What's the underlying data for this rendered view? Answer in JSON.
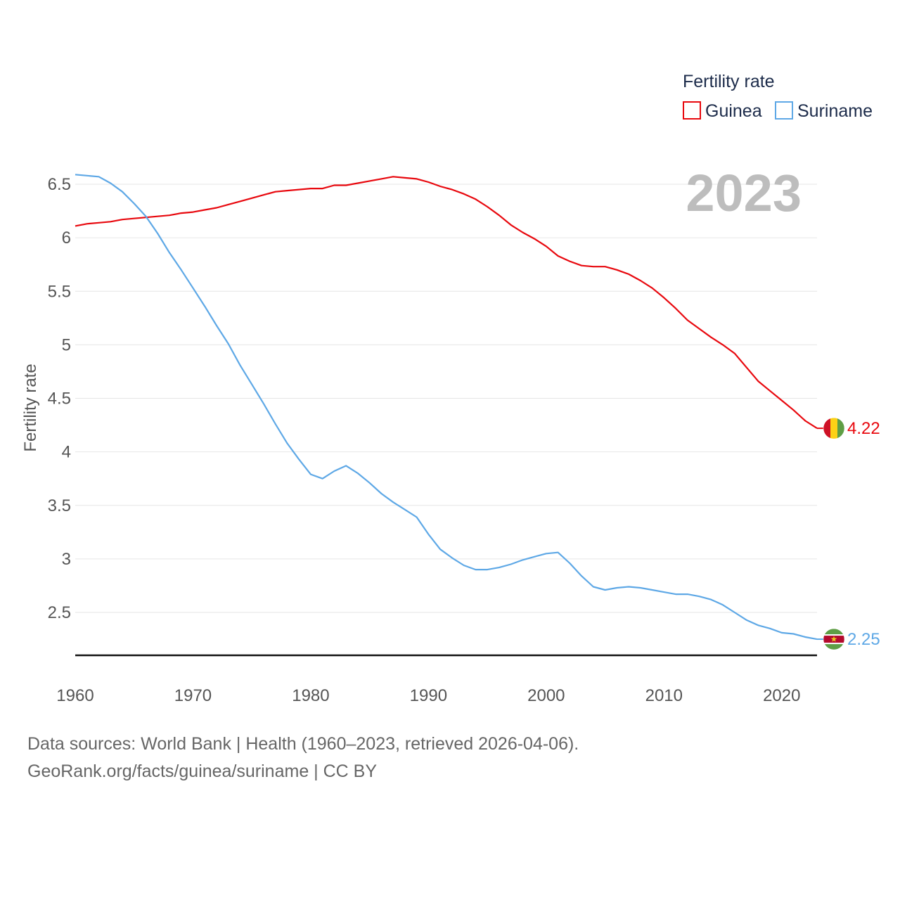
{
  "chart_data": {
    "type": "line",
    "title": "Fertility rate",
    "ylabel": "Fertility rate",
    "xlabel": "",
    "current_year_label": "2023",
    "xlim": [
      1960,
      2023
    ],
    "ylim": [
      2.1,
      6.6
    ],
    "y_ticks": [
      2.5,
      3,
      3.5,
      4,
      4.5,
      5,
      5.5,
      6,
      6.5
    ],
    "y_tick_labels": [
      "2.5",
      "3",
      "3.5",
      "4",
      "4.5",
      "5",
      "5.5",
      "6",
      "6.5"
    ],
    "x_ticks": [
      1960,
      1970,
      1980,
      1990,
      2000,
      2010,
      2020
    ],
    "x_tick_labels": [
      "1960",
      "1970",
      "1980",
      "1990",
      "2000",
      "2010",
      "2020"
    ],
    "grid": true,
    "legend_position": "top-right",
    "x": [
      1960,
      1961,
      1962,
      1963,
      1964,
      1965,
      1966,
      1967,
      1968,
      1969,
      1970,
      1971,
      1972,
      1973,
      1974,
      1975,
      1976,
      1977,
      1978,
      1979,
      1980,
      1981,
      1982,
      1983,
      1984,
      1985,
      1986,
      1987,
      1988,
      1989,
      1990,
      1991,
      1992,
      1993,
      1994,
      1995,
      1996,
      1997,
      1998,
      1999,
      2000,
      2001,
      2002,
      2003,
      2004,
      2005,
      2006,
      2007,
      2008,
      2009,
      2010,
      2011,
      2012,
      2013,
      2014,
      2015,
      2016,
      2017,
      2018,
      2019,
      2020,
      2021,
      2022,
      2023
    ],
    "series": [
      {
        "name": "Guinea",
        "color": "#e8080e",
        "end_label": "4.22",
        "values": [
          6.11,
          6.13,
          6.14,
          6.15,
          6.17,
          6.18,
          6.19,
          6.2,
          6.21,
          6.23,
          6.24,
          6.26,
          6.28,
          6.31,
          6.34,
          6.37,
          6.4,
          6.43,
          6.44,
          6.45,
          6.46,
          6.46,
          6.49,
          6.49,
          6.51,
          6.53,
          6.55,
          6.57,
          6.56,
          6.55,
          6.52,
          6.48,
          6.45,
          6.41,
          6.36,
          6.29,
          6.21,
          6.12,
          6.05,
          5.99,
          5.92,
          5.83,
          5.78,
          5.74,
          5.73,
          5.73,
          5.7,
          5.66,
          5.6,
          5.53,
          5.44,
          5.34,
          5.23,
          5.15,
          5.07,
          5.0,
          4.92,
          4.79,
          4.66,
          4.57,
          4.48,
          4.39,
          4.29,
          4.22
        ]
      },
      {
        "name": "Suriname",
        "color": "#5ea8e6",
        "end_label": "2.25",
        "values": [
          6.59,
          6.58,
          6.57,
          6.51,
          6.43,
          6.32,
          6.2,
          6.04,
          5.86,
          5.7,
          5.53,
          5.36,
          5.18,
          5.01,
          4.81,
          4.63,
          4.45,
          4.26,
          4.08,
          3.93,
          3.79,
          3.75,
          3.82,
          3.87,
          3.8,
          3.71,
          3.61,
          3.53,
          3.46,
          3.39,
          3.23,
          3.09,
          3.01,
          2.94,
          2.9,
          2.9,
          2.92,
          2.95,
          2.99,
          3.02,
          3.05,
          3.06,
          2.96,
          2.84,
          2.74,
          2.71,
          2.73,
          2.74,
          2.73,
          2.71,
          2.69,
          2.67,
          2.67,
          2.65,
          2.62,
          2.57,
          2.5,
          2.43,
          2.38,
          2.35,
          2.31,
          2.3,
          2.27,
          2.25
        ]
      }
    ]
  },
  "legend": {
    "title": "Fertility rate",
    "items": [
      "Guinea",
      "Suriname"
    ]
  },
  "footer": {
    "line1": "Data sources: World Bank | Health (1960–2023, retrieved 2026-04-06).",
    "line2": "GeoRank.org/facts/guinea/suriname | CC BY"
  }
}
